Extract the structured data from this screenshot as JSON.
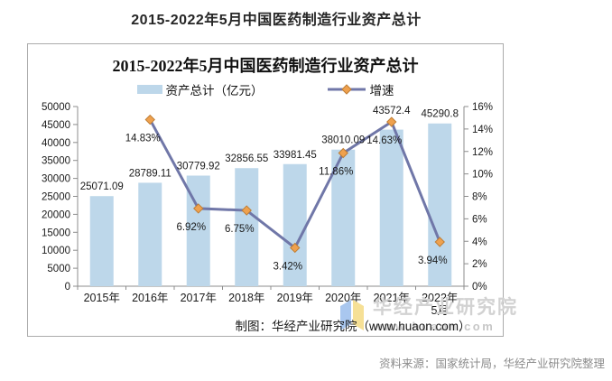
{
  "page_title": "2015-2022年5月中国医药制造行业资产总计",
  "chart": {
    "title": "2015-2022年5月中国医药制造行业资产总计",
    "legend": [
      {
        "label": "资产总计（亿元）",
        "type": "bar"
      },
      {
        "label": "增速",
        "type": "line"
      }
    ],
    "credit": "制图：华经产业研究院（www.huaon.com）",
    "watermark": {
      "name": "华经产业研究院",
      "url": "www.huaon.com",
      "logo": "huaon-book-logo"
    }
  },
  "chart_data": {
    "type": "bar",
    "subtype": "bar+line combo, dual axis",
    "title": "2015-2022年5月中国医药制造行业资产总计",
    "categories": [
      "2015年",
      "2016年",
      "2017年",
      "2018年",
      "2019年",
      "2020年",
      "2021年",
      "2022年\n5月"
    ],
    "series": [
      {
        "name": "资产总计（亿元）",
        "type": "bar",
        "axis": "left",
        "color": "#BDD7EA",
        "values": [
          25071.09,
          28789.11,
          30779.92,
          32856.55,
          33981.45,
          38010.09,
          43572.4,
          45290.8
        ],
        "labels": [
          "25071.09",
          "28789.11",
          "30779.92",
          "32856.55",
          "33981.45",
          "38010.09",
          "43572.4",
          "45290.8"
        ]
      },
      {
        "name": "增速",
        "type": "line",
        "axis": "right",
        "color": "#7077A8",
        "marker": "diamond",
        "marker_color": "#EFA14E",
        "marker_edge_color": "#BE7D35",
        "values": [
          null,
          14.83,
          6.92,
          6.75,
          3.42,
          11.86,
          14.63,
          3.94
        ],
        "labels": [
          null,
          "14.83%",
          "6.92%",
          "6.75%",
          "3.42%",
          "11.86%",
          "14.63%",
          "3.94%"
        ]
      }
    ],
    "left_axis": {
      "min": 0,
      "max": 50000,
      "step": 5000
    },
    "right_axis": {
      "min": 0,
      "max": 16,
      "step": 2,
      "suffix": "%"
    },
    "grid": false,
    "legend_position": "top",
    "axis_color": "#8c8c8c",
    "label_color": "#1a1a1a"
  },
  "source_note": "资料来源：国家统计局，华经产业研究院整理"
}
